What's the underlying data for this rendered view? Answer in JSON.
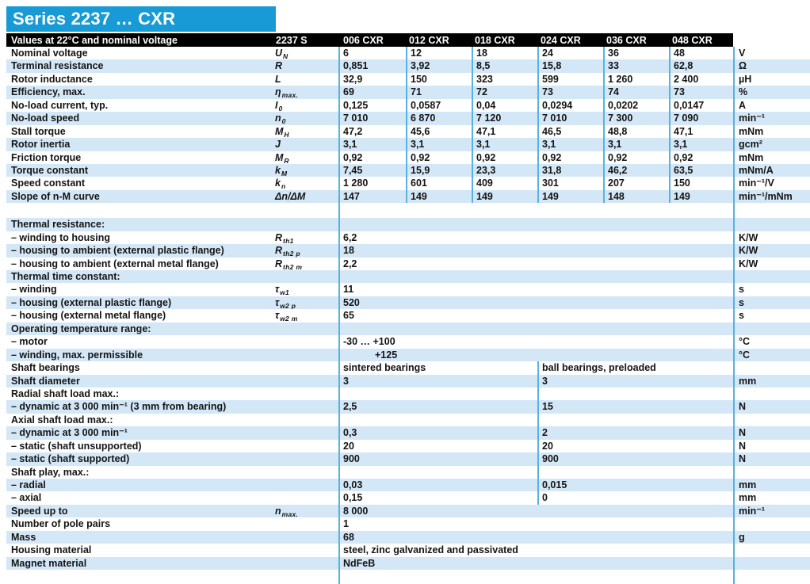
{
  "header": {
    "title": "Series 2237 … CXR"
  },
  "colors": {
    "title_bar": "#189AD6",
    "header_bar": "#000000",
    "row_stripe": "#D4E7F7",
    "divider": "#56B3E1"
  },
  "table": {
    "header": {
      "conditions": "Values at 22°C and nominal voltage",
      "series": "2237 S",
      "variants": [
        "006 CXR",
        "012 CXR",
        "018 CXR",
        "024 CXR",
        "036 CXR",
        "048 CXR"
      ]
    },
    "rows": [
      {
        "type": "spec",
        "label": "Nominal voltage",
        "sym": "U",
        "sub": "N",
        "values": [
          "6",
          "12",
          "18",
          "24",
          "36",
          "48"
        ],
        "unit": "V",
        "stripe": false
      },
      {
        "type": "spec",
        "label": "Terminal resistance",
        "sym": "R",
        "values": [
          "0,851",
          "3,92",
          "8,5",
          "15,8",
          "33",
          "62,8"
        ],
        "unit": "Ω",
        "stripe": true
      },
      {
        "type": "spec",
        "label": "Rotor inductance",
        "sym": "L",
        "values": [
          "32,9",
          "150",
          "323",
          "599",
          "1 260",
          "2 400"
        ],
        "unit": "µH",
        "stripe": false
      },
      {
        "type": "spec",
        "label": "Efficiency, max.",
        "sym": "η",
        "sub": "max.",
        "values": [
          "69",
          "71",
          "72",
          "73",
          "74",
          "73"
        ],
        "unit": "%",
        "stripe": true
      },
      {
        "type": "spec",
        "label": "No-load current, typ.",
        "sym": "I",
        "sub": "0",
        "values": [
          "0,125",
          "0,0587",
          "0,04",
          "0,0294",
          "0,0202",
          "0,0147"
        ],
        "unit": "A",
        "stripe": false
      },
      {
        "type": "spec",
        "label": "No-load speed",
        "sym": "n",
        "sub": "0",
        "values": [
          "7 010",
          "6 870",
          "7 120",
          "7 010",
          "7 300",
          "7 090"
        ],
        "unit": "min⁻¹",
        "stripe": true
      },
      {
        "type": "spec",
        "label": "Stall torque",
        "sym": "M",
        "sub": "H",
        "values": [
          "47,2",
          "45,6",
          "47,1",
          "46,5",
          "48,8",
          "47,1"
        ],
        "unit": "mNm",
        "stripe": false
      },
      {
        "type": "spec",
        "label": "Rotor inertia",
        "sym": "J",
        "values": [
          "3,1",
          "3,1",
          "3,1",
          "3,1",
          "3,1",
          "3,1"
        ],
        "unit": "gcm²",
        "stripe": true
      },
      {
        "type": "spec",
        "label": "Friction torque",
        "sym": "M",
        "sub": "R",
        "values": [
          "0,92",
          "0,92",
          "0,92",
          "0,92",
          "0,92",
          "0,92"
        ],
        "unit": "mNm",
        "stripe": false
      },
      {
        "type": "spec",
        "label": "Torque constant",
        "sym": "k",
        "sub": "M",
        "values": [
          "7,45",
          "15,9",
          "23,3",
          "31,8",
          "46,2",
          "63,5"
        ],
        "unit": "mNm/A",
        "stripe": true
      },
      {
        "type": "spec",
        "label": "Speed constant",
        "sym": "k",
        "sub": "n",
        "values": [
          "1 280",
          "601",
          "409",
          "301",
          "207",
          "150"
        ],
        "unit": "min⁻¹/V",
        "stripe": false
      },
      {
        "type": "spec",
        "label": "Slope of n-M curve",
        "sym": "Δn/ΔM",
        "values": [
          "147",
          "149",
          "149",
          "149",
          "148",
          "149"
        ],
        "unit": "min⁻¹/mNm",
        "stripe": true
      },
      {
        "type": "gap"
      },
      {
        "type": "section",
        "label": "Thermal resistance:",
        "stripe": true
      },
      {
        "type": "single",
        "label": "– winding to housing",
        "sym": "R",
        "sub": "th1",
        "value": "6,2",
        "unit": "K/W",
        "stripe": false
      },
      {
        "type": "single",
        "label": "– housing to ambient (external plastic flange)",
        "sym": "R",
        "sub": "th2 p",
        "value": "18",
        "unit": "K/W",
        "stripe": true
      },
      {
        "type": "single",
        "label": "– housing to ambient (external metal flange)",
        "sym": "R",
        "sub": "th2 m",
        "value": "2,2",
        "unit": "K/W",
        "stripe": false
      },
      {
        "type": "section",
        "label": "Thermal time constant:",
        "stripe": true
      },
      {
        "type": "single",
        "label": "– winding",
        "sym": "τ",
        "sub": "w1",
        "value": "11",
        "unit": "s",
        "stripe": false
      },
      {
        "type": "single",
        "label": "– housing (external plastic flange)",
        "sym": "τ",
        "sub": "w2 p",
        "value": "520",
        "unit": "s",
        "stripe": true
      },
      {
        "type": "single",
        "label": "– housing (external metal flange)",
        "sym": "τ",
        "sub": "w2 m",
        "value": "65",
        "unit": "s",
        "stripe": false
      },
      {
        "type": "section",
        "label": "Operating temperature range:",
        "stripe": true
      },
      {
        "type": "single",
        "label": "– motor",
        "value": "-30 … +100",
        "unit": "°C",
        "stripe": false
      },
      {
        "type": "single",
        "label": "– winding, max. permissible",
        "value": "+125",
        "unit": "°C",
        "stripe": true,
        "indent": true
      },
      {
        "type": "dual",
        "label": "Shaft bearings",
        "values": [
          "sintered bearings",
          "ball bearings, preloaded"
        ],
        "unit": "",
        "stripe": false
      },
      {
        "type": "dual",
        "label": "Shaft diameter",
        "values": [
          "3",
          "3"
        ],
        "unit": "mm",
        "stripe": true
      },
      {
        "type": "dual",
        "label": "Radial shaft load max.:",
        "values": [
          "",
          ""
        ],
        "unit": "",
        "stripe": false
      },
      {
        "type": "dual",
        "label": "– dynamic at 3 000 min⁻¹ (3 mm from bearing)",
        "values": [
          "2,5",
          "15"
        ],
        "unit": "N",
        "stripe": true
      },
      {
        "type": "dual",
        "label": "Axial shaft load max.:",
        "values": [
          "",
          ""
        ],
        "unit": "",
        "stripe": false
      },
      {
        "type": "dual",
        "label": "– dynamic at 3 000 min⁻¹",
        "values": [
          "0,3",
          "2"
        ],
        "unit": "N",
        "stripe": true
      },
      {
        "type": "dual",
        "label": "– static (shaft unsupported)",
        "values": [
          "20",
          "20"
        ],
        "unit": "N",
        "stripe": false
      },
      {
        "type": "dual",
        "label": "– static (shaft supported)",
        "values": [
          "900",
          "900"
        ],
        "unit": "N",
        "stripe": true
      },
      {
        "type": "dual",
        "label": "Shaft play, max.:",
        "values": [
          "",
          ""
        ],
        "unit": "",
        "stripe": false
      },
      {
        "type": "dual",
        "label": "– radial",
        "values": [
          "0,03",
          "0,015"
        ],
        "unit": "mm",
        "stripe": true
      },
      {
        "type": "dual",
        "label": "– axial",
        "values": [
          "0,15",
          "0"
        ],
        "unit": "mm",
        "stripe": false
      },
      {
        "type": "single",
        "label": "Speed up to",
        "sym": "n",
        "sub": "max.",
        "value": "8 000",
        "unit": "min⁻¹",
        "stripe": true
      },
      {
        "type": "single",
        "label": "Number of pole pairs",
        "value": "1",
        "unit": "",
        "stripe": false
      },
      {
        "type": "single",
        "label": "Mass",
        "value": "68",
        "unit": "g",
        "stripe": true
      },
      {
        "type": "single",
        "label": "Housing material",
        "value": "steel, zinc galvanized and passivated",
        "unit": "",
        "stripe": false
      },
      {
        "type": "single",
        "label": "Magnet material",
        "value": "NdFeB",
        "unit": "",
        "stripe": true
      },
      {
        "type": "filler"
      }
    ]
  }
}
